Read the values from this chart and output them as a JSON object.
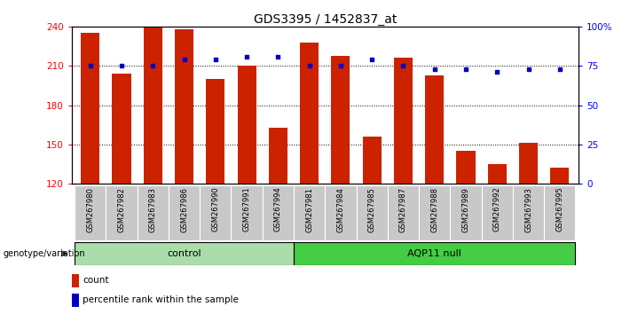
{
  "title": "GDS3395 / 1452837_at",
  "samples": [
    "GSM267980",
    "GSM267982",
    "GSM267983",
    "GSM267986",
    "GSM267990",
    "GSM267991",
    "GSM267994",
    "GSM267981",
    "GSM267984",
    "GSM267985",
    "GSM267987",
    "GSM267988",
    "GSM267989",
    "GSM267992",
    "GSM267993",
    "GSM267995"
  ],
  "counts": [
    235,
    204,
    241,
    238,
    200,
    210,
    163,
    228,
    218,
    156,
    216,
    203,
    145,
    135,
    151,
    132
  ],
  "percentiles": [
    75,
    75,
    75,
    79,
    79,
    81,
    81,
    75,
    75,
    79,
    75,
    73,
    73,
    71,
    73,
    73
  ],
  "control_count": 7,
  "aqp11_count": 9,
  "bar_color": "#cc2200",
  "dot_color": "#0000cc",
  "ylim_left": [
    120,
    240
  ],
  "ylim_right": [
    0,
    100
  ],
  "yticks_left": [
    120,
    150,
    180,
    210,
    240
  ],
  "yticks_right": [
    0,
    25,
    50,
    75,
    100
  ],
  "control_color": "#aaddaa",
  "aqp11_color": "#44cc44",
  "xtick_bg": "#c8c8c8",
  "title_fontsize": 10,
  "tick_fontsize": 7.5,
  "sample_fontsize": 6,
  "group_fontsize": 8,
  "legend_fontsize": 7.5,
  "geno_fontsize": 7
}
